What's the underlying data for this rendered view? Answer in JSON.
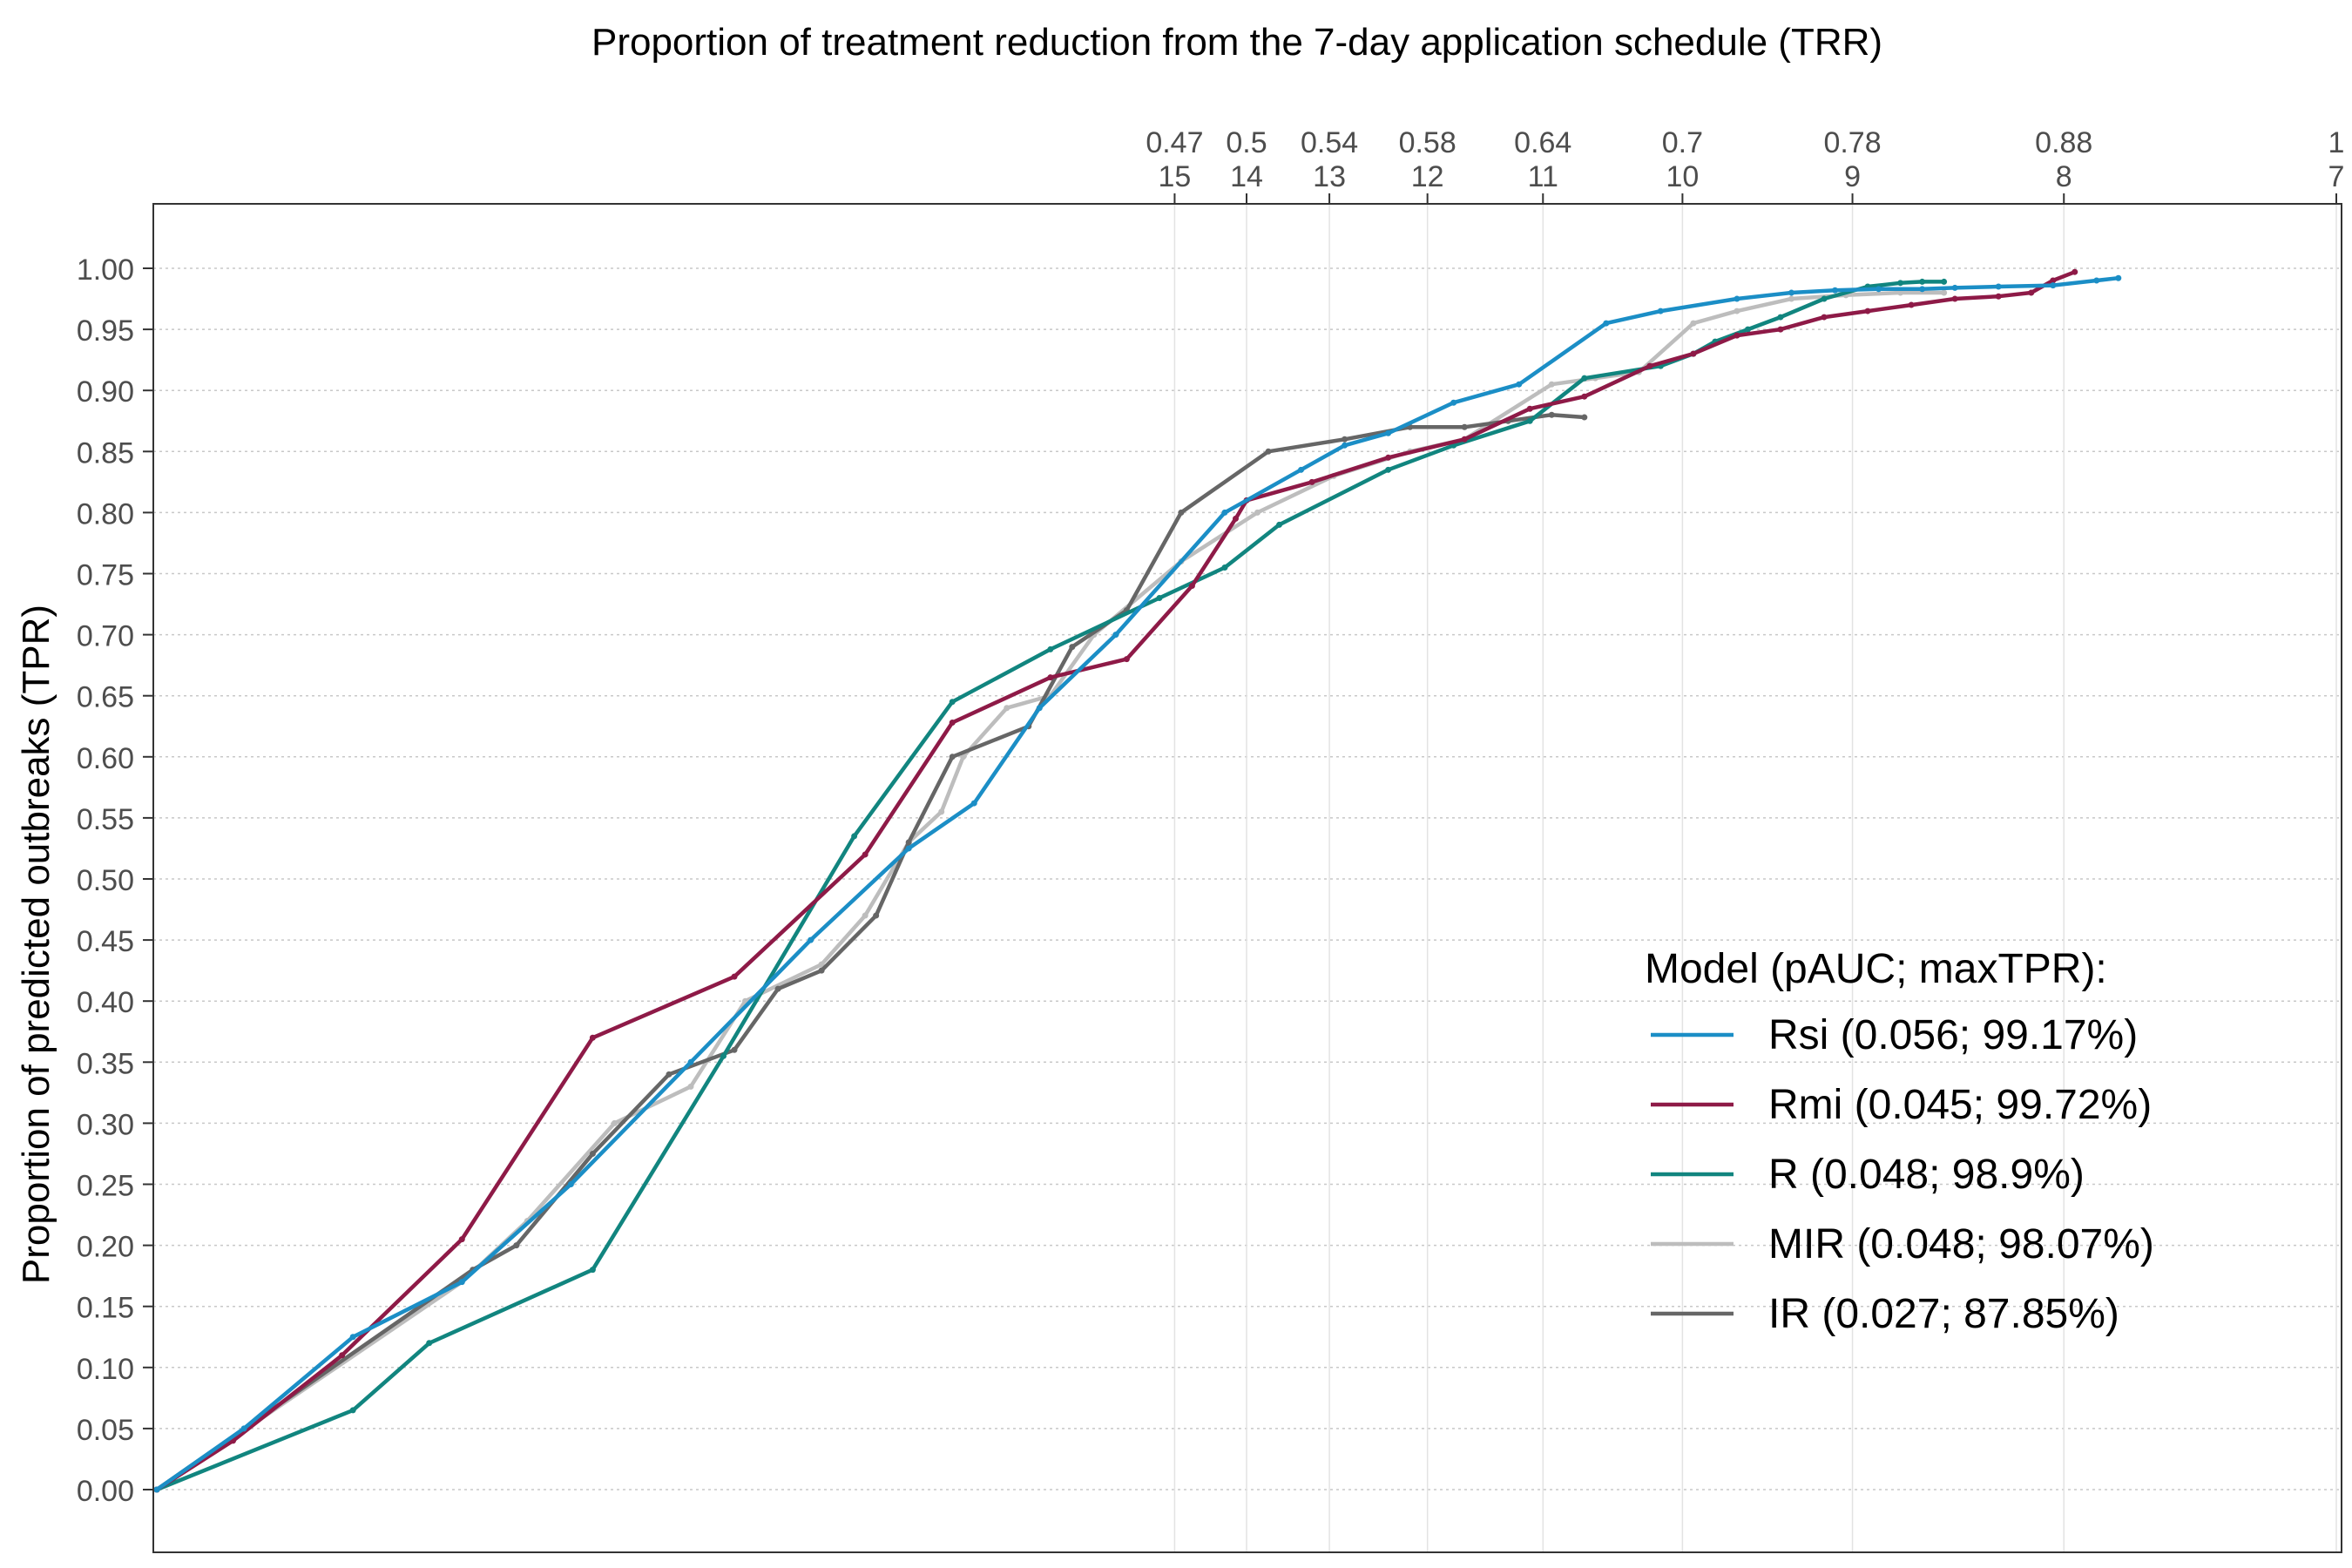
{
  "chart_data": {
    "type": "line",
    "title": "Proportion of treatment reduction from the 7-day application schedule (TRR)",
    "ylabel": "Proportion of predicted outbreaks (TPR)",
    "xlabel": "",
    "xlim": [
      0,
      1
    ],
    "ylim": [
      -0.05,
      1.05
    ],
    "grid": true,
    "y_ticks": [
      "0.00",
      "0.05",
      "0.10",
      "0.15",
      "0.20",
      "0.25",
      "0.30",
      "0.35",
      "0.40",
      "0.45",
      "0.50",
      "0.55",
      "0.60",
      "0.65",
      "0.70",
      "0.75",
      "0.80",
      "0.85",
      "0.90",
      "0.95",
      "1.00"
    ],
    "top_axis_ticks": [
      {
        "x": 0.467,
        "trr": "0.47",
        "days": "15"
      },
      {
        "x": 0.5,
        "trr": "0.5",
        "days": "14"
      },
      {
        "x": 0.538,
        "trr": "0.54",
        "days": "13"
      },
      {
        "x": 0.583,
        "trr": "0.58",
        "days": "12"
      },
      {
        "x": 0.636,
        "trr": "0.64",
        "days": "11"
      },
      {
        "x": 0.7,
        "trr": "0.7",
        "days": "10"
      },
      {
        "x": 0.778,
        "trr": "0.78",
        "days": "9"
      },
      {
        "x": 0.875,
        "trr": "0.88",
        "days": "8"
      },
      {
        "x": 1.0,
        "trr": "1",
        "days": "7"
      }
    ],
    "legend_title": "Model (pAUC; maxTPR):",
    "legend_position": "bottom-right",
    "series": [
      {
        "name": "Rsi (0.056; 99.17%)",
        "color": "#1b8ec6",
        "x": [
          0,
          0.04,
          0.09,
          0.14,
          0.19,
          0.245,
          0.3,
          0.345,
          0.375,
          0.405,
          0.44,
          0.49,
          0.525,
          0.545,
          0.565,
          0.595,
          0.625,
          0.665,
          0.69,
          0.725,
          0.75,
          0.77,
          0.79,
          0.81,
          0.825,
          0.845,
          0.87,
          0.89,
          0.9
        ],
        "y": [
          0,
          0.05,
          0.125,
          0.17,
          0.25,
          0.35,
          0.45,
          0.525,
          0.562,
          0.64,
          0.7,
          0.8,
          0.835,
          0.855,
          0.865,
          0.89,
          0.905,
          0.955,
          0.965,
          0.975,
          0.98,
          0.982,
          0.983,
          0.983,
          0.984,
          0.985,
          0.986,
          0.99,
          0.992
        ]
      },
      {
        "name": "Rmi (0.045; 99.72%)",
        "color": "#8e1a47",
        "x": [
          0,
          0.035,
          0.085,
          0.14,
          0.2,
          0.265,
          0.325,
          0.365,
          0.41,
          0.445,
          0.475,
          0.495,
          0.5,
          0.53,
          0.565,
          0.6,
          0.63,
          0.655,
          0.685,
          0.705,
          0.725,
          0.745,
          0.765,
          0.785,
          0.805,
          0.825,
          0.845,
          0.86,
          0.87,
          0.88
        ],
        "y": [
          0,
          0.04,
          0.11,
          0.205,
          0.37,
          0.42,
          0.52,
          0.628,
          0.665,
          0.68,
          0.74,
          0.795,
          0.81,
          0.825,
          0.845,
          0.86,
          0.885,
          0.895,
          0.92,
          0.93,
          0.945,
          0.95,
          0.96,
          0.965,
          0.97,
          0.975,
          0.977,
          0.98,
          0.99,
          0.997
        ]
      },
      {
        "name": "R (0.048; 98.9%)",
        "color": "#11857f",
        "x": [
          0,
          0.09,
          0.125,
          0.2,
          0.26,
          0.32,
          0.365,
          0.41,
          0.46,
          0.49,
          0.515,
          0.565,
          0.595,
          0.63,
          0.655,
          0.69,
          0.705,
          0.715,
          0.73,
          0.745,
          0.765,
          0.785,
          0.8,
          0.81,
          0.82
        ],
        "y": [
          0,
          0.065,
          0.12,
          0.18,
          0.355,
          0.535,
          0.645,
          0.688,
          0.73,
          0.755,
          0.79,
          0.835,
          0.855,
          0.875,
          0.91,
          0.92,
          0.93,
          0.94,
          0.95,
          0.96,
          0.975,
          0.985,
          0.988,
          0.989,
          0.989
        ]
      },
      {
        "name": "MIR (0.048; 98.07%)",
        "color": "#bdbdbd",
        "x": [
          0,
          0.14,
          0.17,
          0.21,
          0.245,
          0.27,
          0.305,
          0.325,
          0.345,
          0.36,
          0.37,
          0.39,
          0.41,
          0.43,
          0.47,
          0.505,
          0.54,
          0.575,
          0.6,
          0.64,
          0.66,
          0.68,
          0.705,
          0.725,
          0.75,
          0.775,
          0.8,
          0.82
        ],
        "y": [
          0,
          0.17,
          0.22,
          0.3,
          0.33,
          0.4,
          0.43,
          0.47,
          0.53,
          0.555,
          0.6,
          0.64,
          0.65,
          0.7,
          0.76,
          0.8,
          0.83,
          0.85,
          0.86,
          0.905,
          0.91,
          0.915,
          0.955,
          0.965,
          0.975,
          0.978,
          0.98,
          0.98
        ]
      },
      {
        "name": "IR (0.027; 87.85%)",
        "color": "#666666",
        "x": [
          0,
          0.145,
          0.165,
          0.2,
          0.235,
          0.265,
          0.285,
          0.305,
          0.33,
          0.345,
          0.365,
          0.4,
          0.42,
          0.445,
          0.47,
          0.51,
          0.545,
          0.575,
          0.6,
          0.62,
          0.64,
          0.655
        ],
        "y": [
          0,
          0.18,
          0.2,
          0.275,
          0.34,
          0.36,
          0.41,
          0.425,
          0.47,
          0.53,
          0.6,
          0.625,
          0.69,
          0.72,
          0.8,
          0.85,
          0.86,
          0.87,
          0.87,
          0.875,
          0.88,
          0.878
        ]
      }
    ]
  }
}
